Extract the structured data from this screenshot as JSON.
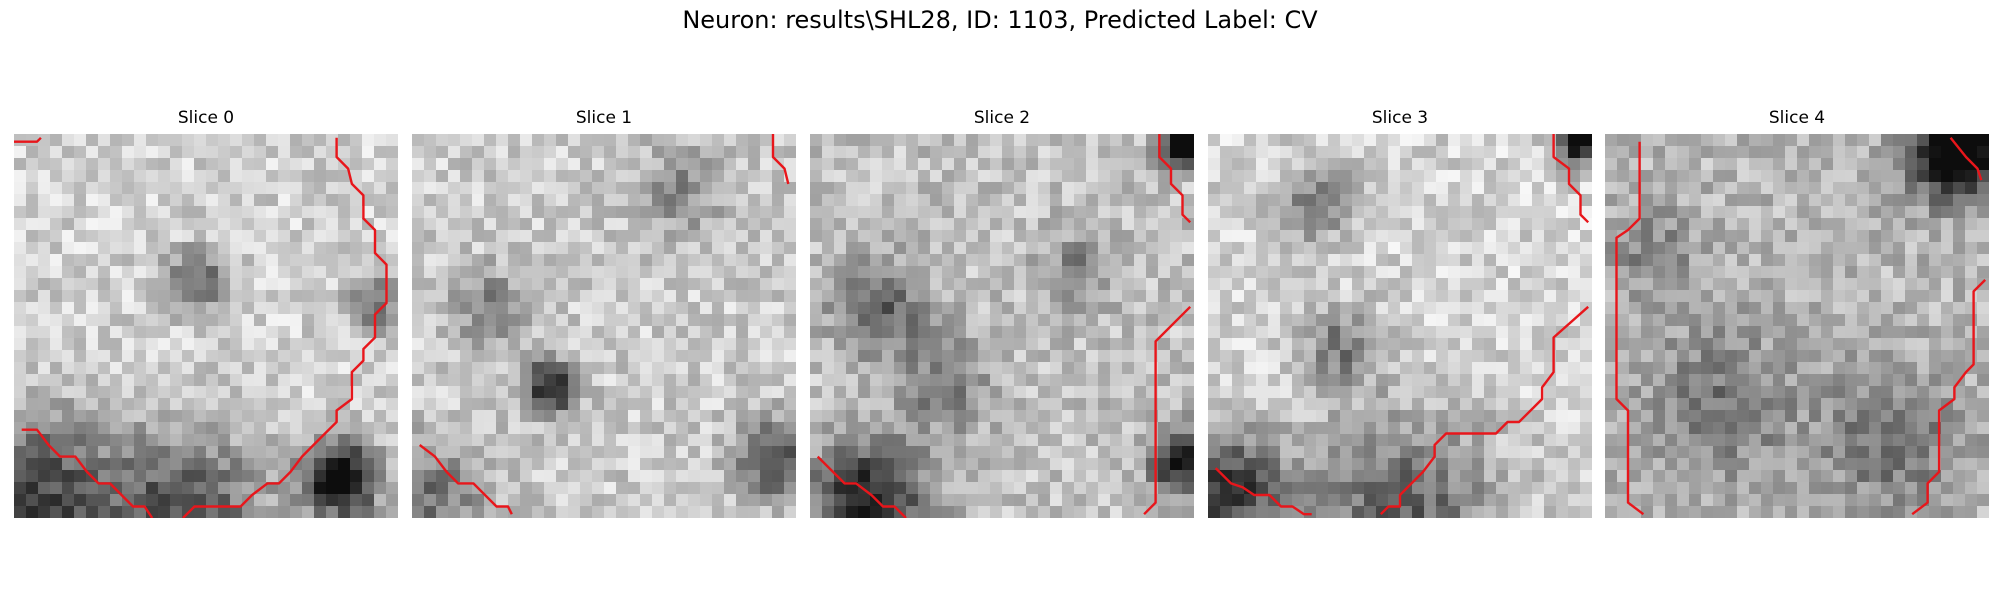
{
  "figure": {
    "title": "Neuron: results\\SHL28, ID: 1103, Predicted Label: CV"
  },
  "panels": [
    {
      "title": "Slice 0",
      "image_description": "grayscale pixelated microscopy patch with red contour outlining a cell body on the right and lower-left",
      "contour_color": "#e8161b",
      "contours": [
        [
          [
            0,
            0.02
          ],
          [
            0.06,
            0.02
          ],
          [
            0.07,
            0.01
          ]
        ],
        [
          [
            0.84,
            0.01
          ],
          [
            0.84,
            0.06
          ],
          [
            0.87,
            0.09
          ],
          [
            0.88,
            0.13
          ],
          [
            0.91,
            0.16
          ],
          [
            0.91,
            0.22
          ],
          [
            0.94,
            0.25
          ],
          [
            0.94,
            0.31
          ],
          [
            0.97,
            0.34
          ],
          [
            0.97,
            0.44
          ],
          [
            0.94,
            0.47
          ],
          [
            0.94,
            0.53
          ],
          [
            0.91,
            0.56
          ],
          [
            0.91,
            0.59
          ],
          [
            0.88,
            0.62
          ],
          [
            0.88,
            0.69
          ],
          [
            0.84,
            0.72
          ],
          [
            0.84,
            0.75
          ],
          [
            0.81,
            0.78
          ],
          [
            0.78,
            0.81
          ],
          [
            0.75,
            0.84
          ],
          [
            0.72,
            0.88
          ],
          [
            0.69,
            0.91
          ],
          [
            0.66,
            0.91
          ],
          [
            0.62,
            0.94
          ],
          [
            0.59,
            0.97
          ],
          [
            0.47,
            0.97
          ],
          [
            0.44,
            1.0
          ]
        ],
        [
          [
            0.02,
            0.77
          ],
          [
            0.06,
            0.77
          ],
          [
            0.09,
            0.81
          ],
          [
            0.12,
            0.84
          ],
          [
            0.16,
            0.84
          ],
          [
            0.19,
            0.88
          ],
          [
            0.22,
            0.91
          ],
          [
            0.25,
            0.91
          ],
          [
            0.28,
            0.94
          ],
          [
            0.31,
            0.97
          ],
          [
            0.34,
            0.97
          ],
          [
            0.36,
            1.0
          ]
        ]
      ]
    },
    {
      "title": "Slice 1",
      "image_description": "grayscale pixelated microscopy patch with dark spot at center-left and red contour lines at top-right and lower-left",
      "contour_color": "#e8161b",
      "contours": [
        [
          [
            0.94,
            0.0
          ],
          [
            0.94,
            0.06
          ],
          [
            0.97,
            0.09
          ],
          [
            0.98,
            0.13
          ]
        ],
        [
          [
            0.02,
            0.81
          ],
          [
            0.06,
            0.84
          ],
          [
            0.09,
            0.88
          ],
          [
            0.12,
            0.91
          ],
          [
            0.16,
            0.91
          ],
          [
            0.19,
            0.94
          ],
          [
            0.22,
            0.97
          ],
          [
            0.25,
            0.97
          ],
          [
            0.26,
            0.99
          ]
        ]
      ]
    },
    {
      "title": "Slice 2",
      "image_description": "grayscale pixelated microscopy patch with red contour lines at top-right, right side, and lower-left",
      "contour_color": "#e8161b",
      "contours": [
        [
          [
            0.91,
            0.0
          ],
          [
            0.91,
            0.06
          ],
          [
            0.94,
            0.09
          ],
          [
            0.94,
            0.13
          ],
          [
            0.97,
            0.16
          ],
          [
            0.97,
            0.21
          ],
          [
            0.99,
            0.23
          ]
        ],
        [
          [
            0.99,
            0.45
          ],
          [
            0.9,
            0.54
          ],
          [
            0.9,
            0.96
          ],
          [
            0.87,
            0.99
          ]
        ],
        [
          [
            0.02,
            0.84
          ],
          [
            0.06,
            0.88
          ],
          [
            0.09,
            0.91
          ],
          [
            0.12,
            0.91
          ],
          [
            0.16,
            0.94
          ],
          [
            0.19,
            0.97
          ],
          [
            0.22,
            0.97
          ],
          [
            0.25,
            1.0
          ]
        ]
      ]
    },
    {
      "title": "Slice 3",
      "image_description": "grayscale pixelated microscopy patch with red contour lines at top-right, right-to-lower-center, and lower-left",
      "contour_color": "#e8161b",
      "contours": [
        [
          [
            0.9,
            0.0
          ],
          [
            0.9,
            0.06
          ],
          [
            0.94,
            0.09
          ],
          [
            0.94,
            0.13
          ],
          [
            0.97,
            0.16
          ],
          [
            0.97,
            0.21
          ],
          [
            0.99,
            0.23
          ]
        ],
        [
          [
            0.99,
            0.45
          ],
          [
            0.9,
            0.53
          ],
          [
            0.9,
            0.62
          ],
          [
            0.87,
            0.66
          ],
          [
            0.87,
            0.69
          ],
          [
            0.84,
            0.72
          ],
          [
            0.81,
            0.75
          ],
          [
            0.78,
            0.75
          ],
          [
            0.75,
            0.78
          ],
          [
            0.62,
            0.78
          ],
          [
            0.59,
            0.81
          ],
          [
            0.59,
            0.84
          ],
          [
            0.56,
            0.88
          ],
          [
            0.53,
            0.91
          ],
          [
            0.5,
            0.94
          ],
          [
            0.5,
            0.97
          ],
          [
            0.47,
            0.97
          ],
          [
            0.45,
            0.99
          ]
        ],
        [
          [
            0.02,
            0.87
          ],
          [
            0.06,
            0.91
          ],
          [
            0.09,
            0.92
          ],
          [
            0.12,
            0.94
          ],
          [
            0.16,
            0.94
          ],
          [
            0.19,
            0.97
          ],
          [
            0.22,
            0.97
          ],
          [
            0.25,
            0.99
          ],
          [
            0.27,
            0.99
          ]
        ]
      ]
    },
    {
      "title": "Slice 4",
      "image_description": "grayscale pixelated microscopy patch with dark corner at top-right and red contour lines on left edge, top-right, and right side",
      "contour_color": "#e8161b",
      "contours": [
        [
          [
            0.09,
            0.02
          ],
          [
            0.09,
            0.22
          ],
          [
            0.06,
            0.25
          ],
          [
            0.03,
            0.27
          ],
          [
            0.03,
            0.69
          ],
          [
            0.06,
            0.72
          ],
          [
            0.06,
            0.96
          ],
          [
            0.1,
            0.99
          ]
        ],
        [
          [
            0.9,
            0.01
          ],
          [
            0.94,
            0.06
          ],
          [
            0.97,
            0.09
          ],
          [
            0.98,
            0.12
          ]
        ],
        [
          [
            0.99,
            0.38
          ],
          [
            0.96,
            0.41
          ],
          [
            0.96,
            0.6
          ],
          [
            0.94,
            0.62
          ],
          [
            0.91,
            0.66
          ],
          [
            0.91,
            0.69
          ],
          [
            0.87,
            0.72
          ],
          [
            0.87,
            0.88
          ],
          [
            0.84,
            0.91
          ],
          [
            0.84,
            0.96
          ],
          [
            0.8,
            0.99
          ]
        ]
      ]
    }
  ]
}
